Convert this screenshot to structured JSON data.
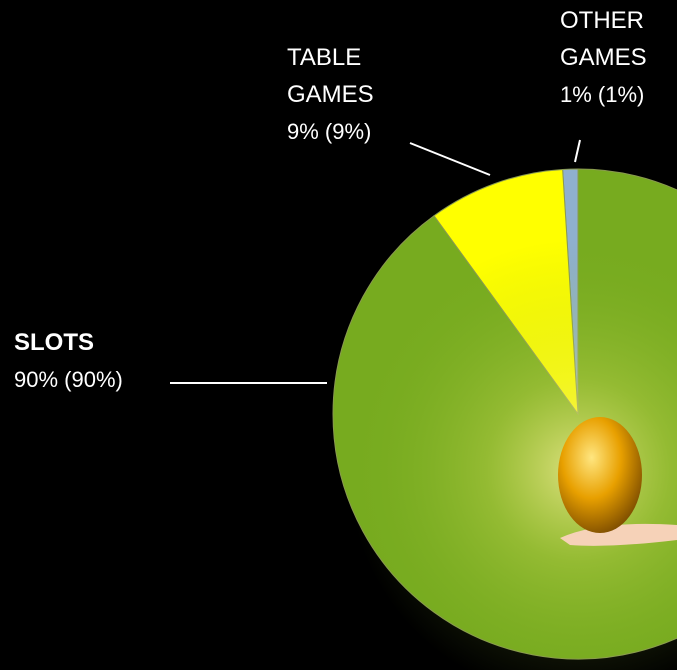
{
  "chart_data": {
    "type": "pie",
    "categories": [
      "OTHER GAMES",
      "TABLE GAMES",
      "SLOTS"
    ],
    "values": [
      1,
      9,
      90
    ],
    "value_labels": [
      "1% (1%)",
      "9% (9%)",
      "90% (90%)"
    ],
    "colors": [
      "#8fb0cf",
      "#ffff00",
      "#77ab1f"
    ]
  }
}
